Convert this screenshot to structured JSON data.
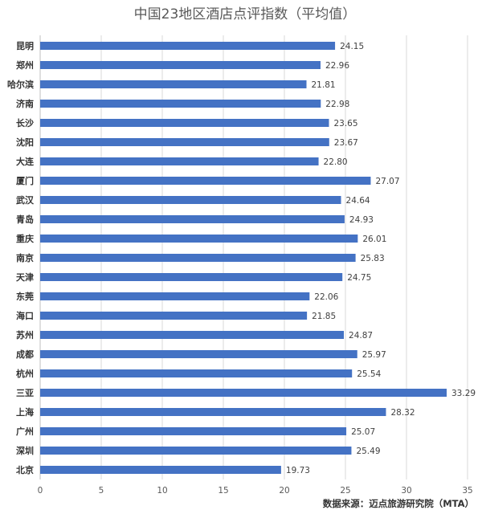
{
  "chart_data": {
    "type": "bar",
    "orientation": "horizontal",
    "title": "中国23地区酒店点评指数（平均值）",
    "source": "数据来源：迈点旅游研究院（MTA）",
    "categories": [
      "昆明",
      "郑州",
      "哈尔滨",
      "济南",
      "长沙",
      "沈阳",
      "大连",
      "厦门",
      "武汉",
      "青岛",
      "重庆",
      "南京",
      "天津",
      "东莞",
      "海口",
      "苏州",
      "成都",
      "杭州",
      "三亚",
      "上海",
      "广州",
      "深圳",
      "北京"
    ],
    "values": [
      24.15,
      22.96,
      21.81,
      22.98,
      23.65,
      23.67,
      22.8,
      27.07,
      24.64,
      24.93,
      26.01,
      25.83,
      24.75,
      22.06,
      21.85,
      24.87,
      25.97,
      25.54,
      33.29,
      28.32,
      25.07,
      25.49,
      19.73
    ],
    "value_labels": [
      "24.15",
      "22.96",
      "21.81",
      "22.98",
      "23.65",
      "23.67",
      "22.80",
      "27.07",
      "24.64",
      "24.93",
      "26.01",
      "25.83",
      "24.75",
      "22.06",
      "21.85",
      "24.87",
      "25.97",
      "25.54",
      "33.29",
      "28.32",
      "25.07",
      "25.49",
      "19.73"
    ],
    "xlim": [
      0,
      35
    ],
    "xticks": [
      "0",
      "5",
      "10",
      "15",
      "20",
      "25",
      "30",
      "35"
    ],
    "grid": true,
    "legend": "none",
    "bar_color": "#4472c4"
  }
}
